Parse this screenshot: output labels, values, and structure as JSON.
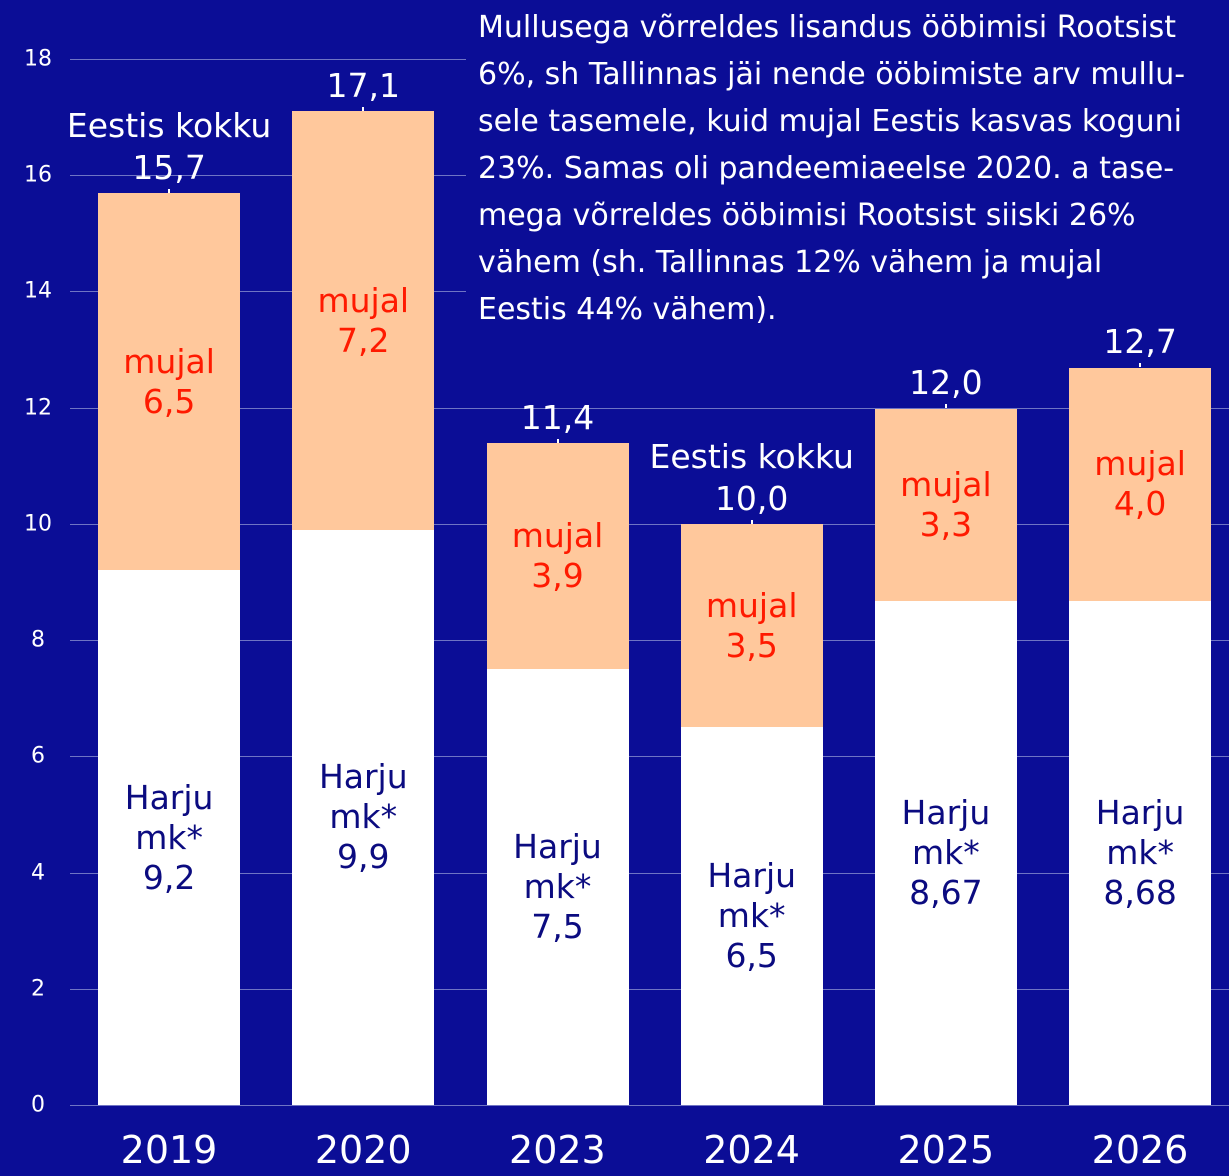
{
  "chart_data": {
    "type": "stacked_bar",
    "categories": [
      "2019",
      "2020",
      "2023",
      "2024",
      "2025",
      "2026"
    ],
    "series": [
      {
        "name": "Harju mk*",
        "color": "#ffffff",
        "label_color": "#0b0b80",
        "values": [
          9.2,
          9.9,
          7.5,
          6.5,
          8.67,
          8.68
        ],
        "value_labels": [
          "9,2",
          "9,9",
          "7,5",
          "6,5",
          "8,67",
          "8,68"
        ]
      },
      {
        "name": "mujal",
        "color": "#ffc89c",
        "label_color": "#ff1a00",
        "values": [
          6.5,
          7.2,
          3.9,
          3.5,
          3.3,
          4.0
        ],
        "value_labels": [
          "6,5",
          "7,2",
          "3,9",
          "3,5",
          "3,3",
          "4,0"
        ]
      }
    ],
    "totals": {
      "values": [
        15.7,
        17.1,
        11.4,
        10.0,
        12.0,
        12.7
      ],
      "value_labels": [
        "15,7",
        "17,1",
        "11,4",
        "10,0",
        "12,0",
        "12,7"
      ]
    },
    "annotations": [
      {
        "text": "Eestis kokku",
        "category": "2019"
      },
      {
        "text": "Eestis kokku",
        "category": "2024"
      }
    ],
    "note": [
      "Mullusega võrreldes lisandus ööbimisi Rootsist",
      "6%, sh Tallinnas jäi nende ööbimiste arv mullu-",
      "sele tasemele, kuid mujal Eestis kasvas koguni",
      "23%. Samas oli pandeemiaeelse 2020. a tase-",
      "mega võrreldes ööbimisi Rootsist siiski 26%",
      "vähem (sh. Tallinnas 12% vähem ja mujal",
      "Eestis 44% vähem)."
    ],
    "ylim": [
      0,
      18
    ],
    "yticks": [
      0,
      2,
      4,
      6,
      8,
      10,
      12,
      14,
      16,
      18
    ],
    "grid": true
  }
}
